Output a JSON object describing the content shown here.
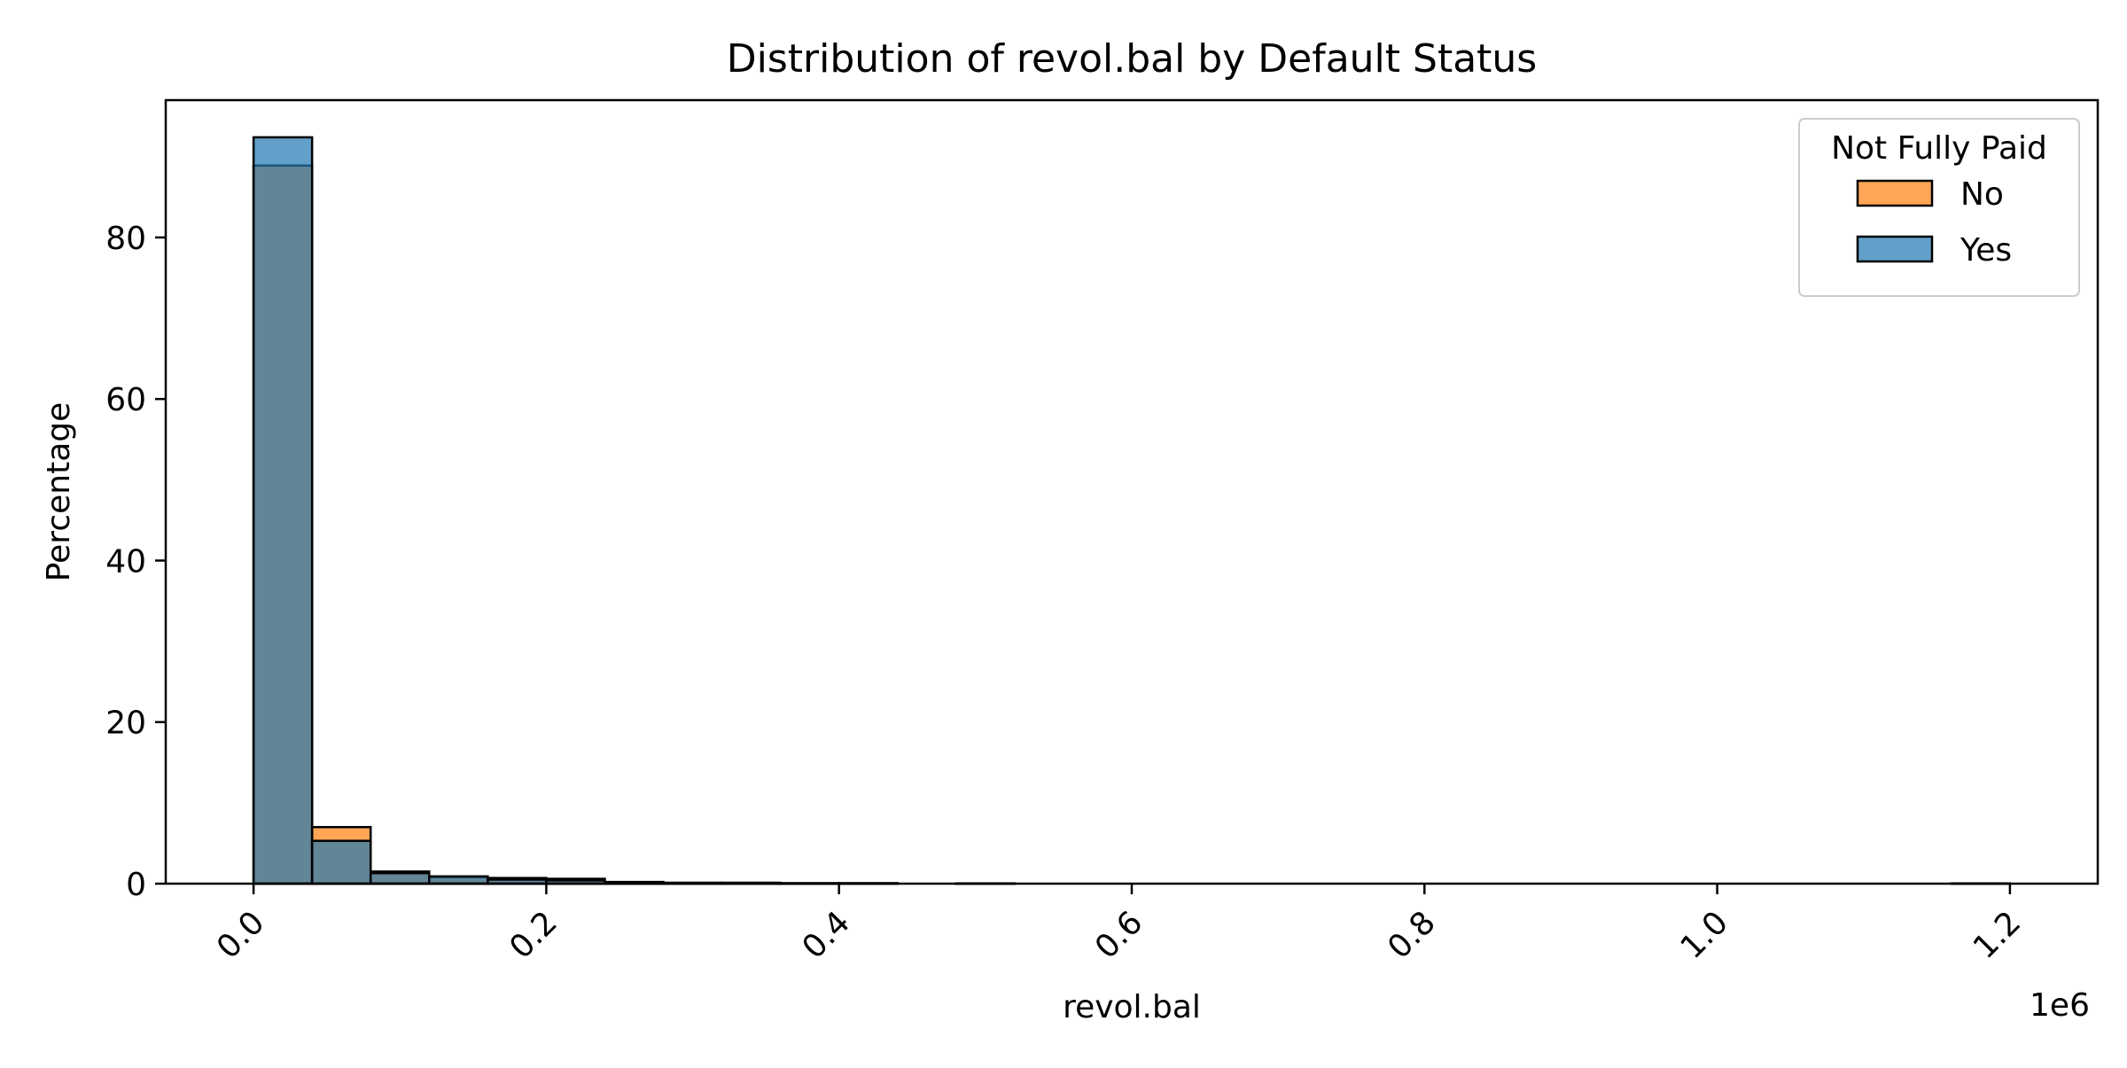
{
  "chart_data": {
    "type": "bar",
    "title": "Distribution of revol.bal by Default Status",
    "xlabel": "revol.bal",
    "ylabel": "Percentage",
    "x_offset_text": "1e6",
    "xlim": [
      -0.06,
      1.26
    ],
    "ylim": [
      0,
      97
    ],
    "xticks": [
      0.0,
      0.2,
      0.4,
      0.6,
      0.8,
      1.0,
      1.2
    ],
    "xtick_labels": [
      "0.0",
      "0.2",
      "0.4",
      "0.6",
      "0.8",
      "1.0",
      "1.2"
    ],
    "yticks": [
      0,
      20,
      40,
      60,
      80
    ],
    "ytick_labels": [
      "0",
      "20",
      "40",
      "60",
      "80"
    ],
    "grid": false,
    "bin_edges": [
      0.0,
      0.04,
      0.08,
      0.12,
      0.16,
      0.2,
      0.24,
      0.28,
      0.32,
      0.36,
      0.4,
      0.44,
      0.48,
      0.52,
      0.56,
      0.6,
      0.64,
      0.68,
      0.72,
      0.76,
      0.8,
      0.84,
      0.88,
      0.92,
      0.96,
      1.0,
      1.04,
      1.08,
      1.12,
      1.16,
      1.2
    ],
    "legend": {
      "title": "Not Fully Paid",
      "placement": "top-right"
    },
    "series": [
      {
        "name": "No",
        "color": "#ff7f0e",
        "values": [
          88.9,
          7.0,
          1.5,
          0.8,
          0.7,
          0.6,
          0.2,
          0.1,
          0.1,
          0.05,
          0.05,
          0.0,
          0.03,
          0.0,
          0.0,
          0.0,
          0.0,
          0.0,
          0.0,
          0.0,
          0.0,
          0.0,
          0.0,
          0.0,
          0.0,
          0.0,
          0.0,
          0.0,
          0.0,
          0.01
        ]
      },
      {
        "name": "Yes",
        "color": "#1f77b4",
        "values": [
          92.4,
          5.3,
          1.3,
          0.9,
          0.5,
          0.4,
          0.2,
          0.1,
          0.1,
          0.05,
          0.05,
          0.0,
          0.03,
          0.0,
          0.0,
          0.0,
          0.0,
          0.0,
          0.0,
          0.0,
          0.0,
          0.0,
          0.0,
          0.0,
          0.0,
          0.0,
          0.0,
          0.0,
          0.0,
          0.03
        ]
      }
    ]
  }
}
